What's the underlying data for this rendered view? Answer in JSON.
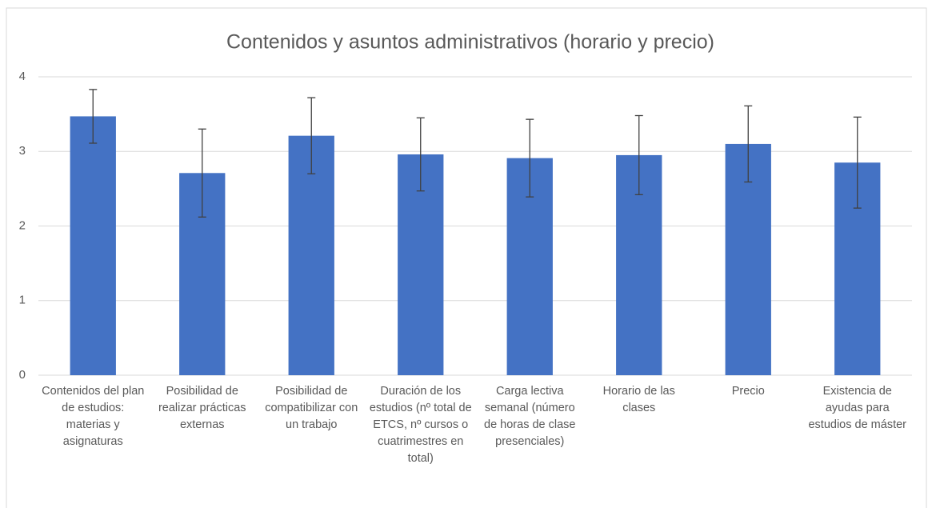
{
  "chart_data": {
    "type": "bar",
    "title": "Contenidos y asuntos administrativos (horario y precio)",
    "categories": [
      "Contenidos del plan de estudios: materias y asignaturas",
      "Posibilidad de realizar prácticas externas",
      "Posibilidad de compatibilizar con un trabajo",
      "Duración de los estudios (nº total de ETCS, nº cursos o cuatrimestres en total)",
      "Carga lectiva semanal (número de horas de clase presenciales)",
      "Horario de las clases",
      "Precio",
      "Existencia de ayudas para estudios de máster"
    ],
    "values": [
      3.47,
      2.71,
      3.21,
      2.96,
      2.91,
      2.95,
      3.1,
      2.85
    ],
    "errors": [
      0.36,
      0.59,
      0.51,
      0.49,
      0.52,
      0.53,
      0.51,
      0.61
    ],
    "color": "#4472c4",
    "ylim": [
      0,
      4
    ],
    "yticks": [
      0,
      1,
      2,
      3,
      4
    ],
    "grid": true
  }
}
